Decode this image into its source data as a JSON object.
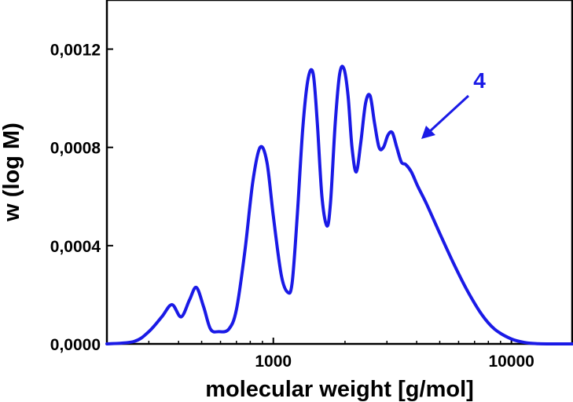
{
  "chart_data": {
    "type": "line",
    "xscale": "log",
    "xlabel": "molecular weight [g/mol]",
    "ylabel": "w (log M)",
    "xlim": [
      200,
      18000
    ],
    "ylim": [
      0,
      0.0014
    ],
    "x_ticks": [
      {
        "value": 1000,
        "label": "1000"
      },
      {
        "value": 10000,
        "label": "10000"
      }
    ],
    "y_ticks": [
      {
        "value": 0,
        "label": "0,0000"
      },
      {
        "value": 0.0004,
        "label": "0,0004"
      },
      {
        "value": 0.0008,
        "label": "0,0008"
      },
      {
        "value": 0.0012,
        "label": "0,0012"
      }
    ],
    "series": [
      {
        "name": "4",
        "color": "#1a1ae6",
        "x": [
          200,
          260,
          300,
          340,
          375,
          410,
          445,
          475,
          510,
          545,
          590,
          650,
          700,
          760,
          820,
          880,
          940,
          1000,
          1080,
          1150,
          1200,
          1260,
          1330,
          1400,
          1470,
          1530,
          1600,
          1680,
          1740,
          1820,
          1900,
          1980,
          2060,
          2140,
          2230,
          2330,
          2440,
          2550,
          2660,
          2780,
          2900,
          3030,
          3160,
          3300,
          3450,
          3600,
          3800,
          4050,
          4400,
          5000,
          5700,
          6500,
          7500,
          8500,
          10000,
          11500,
          13000,
          15000,
          18000
        ],
        "y": [
          0.0,
          1e-05,
          5e-05,
          0.00011,
          0.00016,
          0.00011,
          0.00018,
          0.00023,
          0.00015,
          6e-05,
          5e-05,
          6e-05,
          0.00014,
          0.00038,
          0.00066,
          0.0008,
          0.00074,
          0.00052,
          0.00028,
          0.00021,
          0.00025,
          0.00052,
          0.00088,
          0.00108,
          0.0011,
          0.0009,
          0.0006,
          0.00048,
          0.00058,
          0.0009,
          0.0011,
          0.00112,
          0.00101,
          0.0008,
          0.0007,
          0.00082,
          0.00098,
          0.00101,
          0.0009,
          0.0008,
          0.0008,
          0.00085,
          0.00086,
          0.0008,
          0.00074,
          0.00073,
          0.0007,
          0.00064,
          0.00057,
          0.00045,
          0.00033,
          0.00022,
          0.00012,
          6e-05,
          2e-05,
          5e-06,
          1e-06,
          0.0,
          0.0
        ]
      }
    ],
    "annotation": {
      "text": "4",
      "arrow": true
    }
  }
}
